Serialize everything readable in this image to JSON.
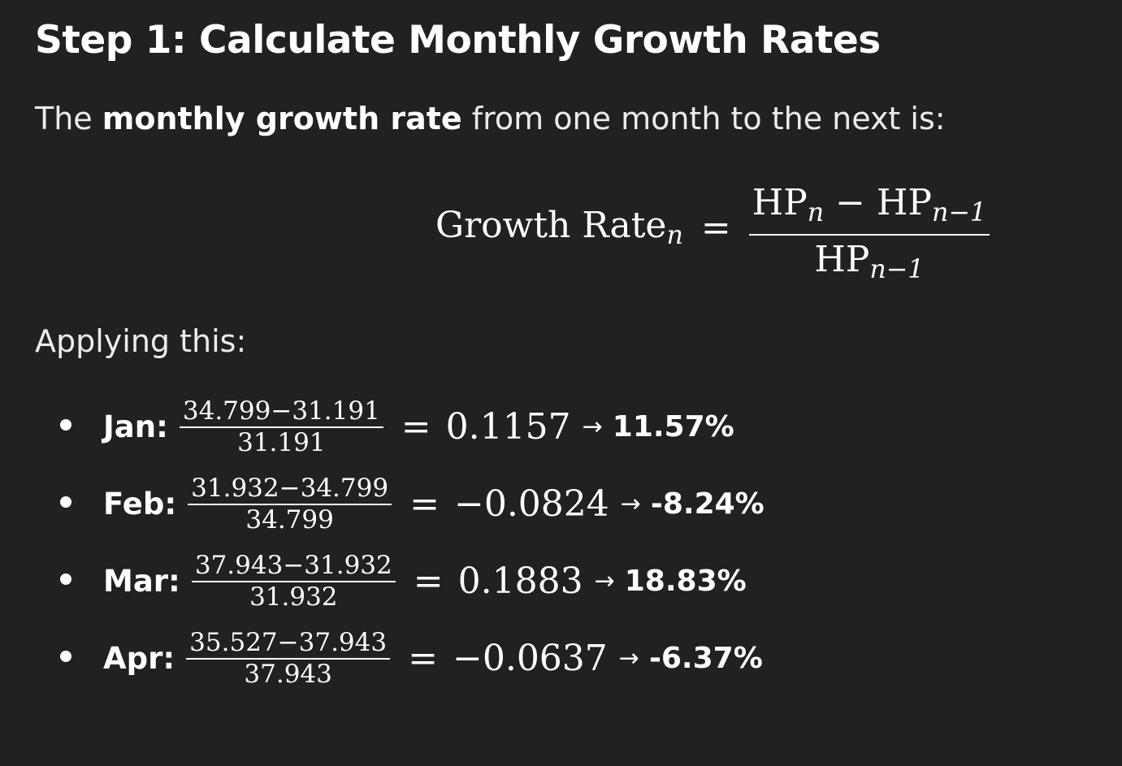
{
  "heading": "Step 1: Calculate Monthly Growth Rates",
  "intro": {
    "before": "The ",
    "bold": "monthly growth rate",
    "after": " from one month to the next is:"
  },
  "formula": {
    "lhs_text": "Growth Rate",
    "lhs_sub": "n",
    "equals": "=",
    "numerator_a": "HP",
    "numerator_a_sub": "n",
    "minus": " − ",
    "numerator_b": "HP",
    "numerator_b_sub": "n−1",
    "denominator": "HP",
    "denominator_sub": "n−1"
  },
  "applying": "Applying this:",
  "arrow": "→",
  "equals": "=",
  "items": [
    {
      "label": "Jan:",
      "numerator": "34.799−31.191",
      "denominator": "31.191",
      "result": "0.1157",
      "percent": "11.57%"
    },
    {
      "label": "Feb:",
      "numerator": "31.932−34.799",
      "denominator": "34.799",
      "result": "−0.0824",
      "percent": "-8.24%"
    },
    {
      "label": "Mar:",
      "numerator": "37.943−31.932",
      "denominator": "31.932",
      "result": "0.1883",
      "percent": "18.83%"
    },
    {
      "label": "Apr:",
      "numerator": "35.527−37.943",
      "denominator": "37.943",
      "result": "−0.0637",
      "percent": "-6.37%"
    }
  ]
}
